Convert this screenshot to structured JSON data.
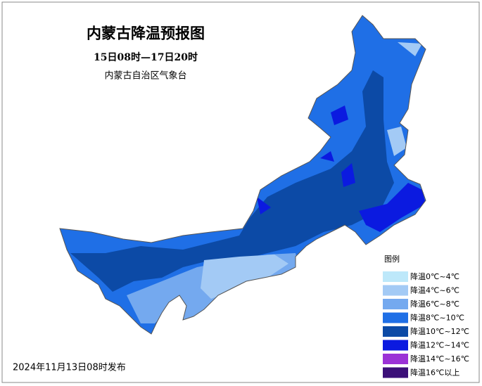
{
  "header": {
    "title": "内蒙古降温预报图",
    "subtitle": "15日08时—17日20时",
    "issuer": "内蒙古自治区气象台"
  },
  "legend": {
    "title": "图例",
    "items": [
      {
        "label": "降温0℃~4℃",
        "color": "#bde8fa"
      },
      {
        "label": "降温4℃~6℃",
        "color": "#a3caf5"
      },
      {
        "label": "降温6℃~8℃",
        "color": "#74a9ef"
      },
      {
        "label": "降温8℃~10℃",
        "color": "#1f6fe6"
      },
      {
        "label": "降温10℃~12℃",
        "color": "#0c4aa6"
      },
      {
        "label": "降温12℃~14℃",
        "color": "#0b1ae0"
      },
      {
        "label": "降温14℃~16℃",
        "color": "#9b32d6"
      },
      {
        "label": "降温16℃以上",
        "color": "#3b0f78"
      }
    ]
  },
  "footer": {
    "issued": "2024年11月13日08时发布"
  }
}
